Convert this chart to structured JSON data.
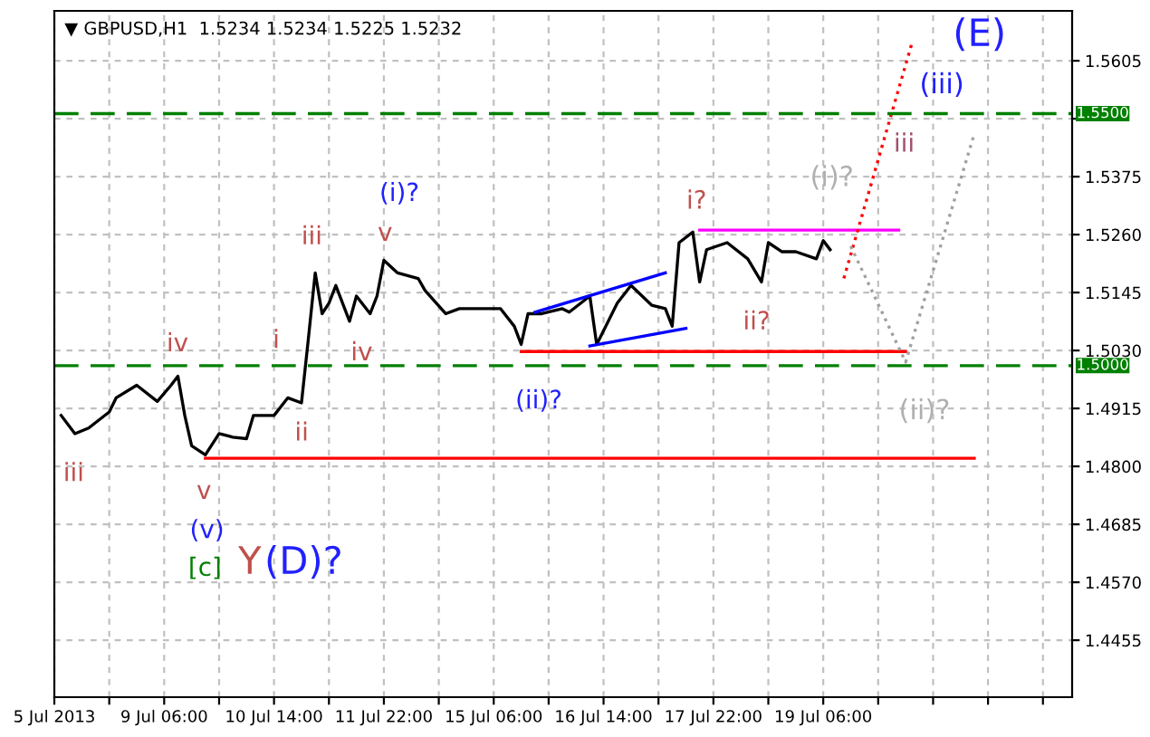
{
  "chart_data": {
    "type": "line",
    "title": "▼ GBPUSD,H1  1.5234 1.5234 1.5225 1.5232",
    "categories": [
      "5 Jul 2013",
      null,
      null,
      null,
      null,
      null,
      null,
      null,
      null,
      null,
      null,
      null,
      null,
      null,
      null,
      null,
      "9 Jul 06:00",
      null,
      null,
      null,
      null,
      null,
      null,
      null,
      null,
      null,
      null,
      null,
      null,
      null,
      null,
      null,
      "10 Jul 14:00",
      null,
      null,
      null,
      null,
      null,
      null,
      null,
      null,
      null,
      null,
      null,
      null,
      null,
      null,
      null,
      "11 Jul 22:00",
      null,
      null,
      null,
      null,
      null,
      null,
      null,
      null,
      null,
      null,
      null,
      null,
      null,
      null,
      null,
      "15 Jul 06:00",
      null,
      null,
      null,
      null,
      null,
      null,
      null,
      null,
      null,
      null,
      null,
      null,
      null,
      null,
      null,
      "16 Jul 14:00",
      null,
      null,
      null,
      null,
      null,
      null,
      null,
      null,
      null,
      null,
      null,
      null,
      null,
      null,
      null,
      "17 Jul 22:00",
      null,
      null,
      null,
      null,
      null,
      null,
      null,
      null,
      null,
      null,
      null,
      null,
      null,
      null,
      null,
      "19 Jul 06:00",
      null,
      null,
      null,
      null,
      null,
      null,
      null,
      null,
      null,
      null,
      null,
      null,
      null,
      null,
      null,
      null,
      null,
      null,
      null,
      null,
      null,
      null,
      null,
      null,
      null,
      null,
      null,
      null,
      null,
      null,
      null,
      null,
      null,
      null,
      null,
      null
    ],
    "ylim": [
      1.4342,
      1.5704
    ],
    "yticks": [
      {
        "value": 1.4455,
        "label": "1.4455"
      },
      {
        "value": 1.457,
        "label": "1.4570"
      },
      {
        "value": 1.4685,
        "label": "1.4685"
      },
      {
        "value": 1.48,
        "label": "1.4800"
      },
      {
        "value": 1.4915,
        "label": "1.4915"
      },
      {
        "value": 1.503,
        "label": "1.5030"
      },
      {
        "value": 1.5145,
        "label": "1.5145"
      },
      {
        "value": 1.526,
        "label": "1.5260"
      },
      {
        "value": 1.5375,
        "label": "1.5375"
      },
      {
        "value": 1.549,
        "label": null
      },
      {
        "value": 1.5605,
        "label": "1.5605"
      }
    ],
    "grid": true,
    "marker": "none",
    "series": [
      {
        "color": "#000000",
        "line_style": "solid",
        "values": [
          null,
          1.4901,
          null,
          1.4865,
          null,
          1.4876,
          null,
          null,
          1.4908,
          1.4936,
          null,
          null,
          1.4961,
          null,
          null,
          1.4929,
          null,
          1.4961,
          1.4979,
          1.4901,
          1.4841,
          null,
          1.4823,
          null,
          1.4865,
          null,
          1.4858,
          null,
          1.4855,
          1.4901,
          null,
          null,
          1.4901,
          null,
          1.4936,
          null,
          1.4926,
          1.5053,
          1.5184,
          1.5103,
          1.5124,
          1.5159,
          null,
          1.5088,
          1.5138,
          null,
          1.5103,
          1.5138,
          1.5209,
          null,
          1.5184,
          null,
          null,
          1.5173,
          1.5149,
          null,
          null,
          1.5103,
          null,
          1.5113,
          null,
          null,
          null,
          1.5113,
          null,
          1.5113,
          null,
          1.5078,
          1.5042,
          1.5103,
          null,
          1.5103,
          null,
          null,
          1.5113,
          1.5106,
          null,
          null,
          1.5138,
          1.5042,
          null,
          null,
          1.5124,
          null,
          1.5159,
          null,
          null,
          1.512,
          null,
          1.5113,
          1.5078,
          1.5244,
          null,
          1.5265,
          1.5166,
          1.523,
          null,
          null,
          1.5244,
          null,
          null,
          1.5212,
          null,
          1.5166,
          1.5244,
          null,
          1.5226,
          null,
          1.5226,
          null,
          null,
          1.5212,
          1.5248,
          1.523,
          null,
          null,
          null,
          null,
          null,
          null,
          null,
          null,
          null,
          null,
          null,
          null,
          null,
          null,
          null,
          null,
          null,
          null,
          null,
          null,
          null,
          null,
          null,
          null,
          null,
          null,
          null,
          null,
          null,
          null,
          null,
          null,
          null,
          null,
          null
        ]
      },
      {
        "color": "#ff0000",
        "line_style": "solid",
        "values": [
          null,
          null,
          null,
          null,
          null,
          null,
          null,
          null,
          null,
          null,
          null,
          null,
          null,
          null,
          null,
          null,
          null,
          null,
          null,
          null,
          null,
          null,
          1.4816,
          null,
          null,
          null,
          null,
          null,
          null,
          null,
          null,
          null,
          null,
          null,
          null,
          null,
          null,
          null,
          null,
          null,
          null,
          null,
          null,
          null,
          null,
          null,
          null,
          null,
          null,
          null,
          null,
          null,
          null,
          null,
          null,
          null,
          null,
          null,
          null,
          null,
          null,
          null,
          null,
          null,
          null,
          null,
          null,
          null,
          null,
          null,
          null,
          null,
          null,
          null,
          null,
          null,
          null,
          null,
          null,
          null,
          null,
          null,
          null,
          null,
          null,
          null,
          null,
          null,
          null,
          null,
          null,
          null,
          null,
          null,
          null,
          null,
          null,
          null,
          null,
          null,
          null,
          null,
          null,
          null,
          null,
          null,
          null,
          null,
          null,
          null,
          null,
          null,
          null,
          null,
          null,
          null,
          null,
          null,
          null,
          null,
          null,
          null,
          null,
          null,
          null,
          null,
          null,
          null,
          null,
          null,
          null,
          null,
          null,
          null,
          1.4816,
          null,
          null,
          null,
          null,
          null,
          null,
          null,
          null,
          null,
          null,
          null,
          null,
          null,
          null
        ]
      },
      {
        "color": "#ff0000",
        "line_style": "solid",
        "values": [
          null,
          null,
          null,
          null,
          null,
          null,
          null,
          null,
          null,
          null,
          null,
          null,
          null,
          null,
          null,
          null,
          null,
          null,
          null,
          null,
          null,
          null,
          null,
          null,
          null,
          null,
          null,
          null,
          null,
          null,
          null,
          null,
          null,
          null,
          null,
          null,
          null,
          null,
          null,
          null,
          null,
          null,
          null,
          null,
          null,
          null,
          null,
          null,
          null,
          null,
          null,
          null,
          null,
          null,
          null,
          null,
          null,
          null,
          null,
          null,
          null,
          null,
          null,
          null,
          null,
          null,
          null,
          null,
          1.5028,
          null,
          null,
          null,
          null,
          null,
          null,
          null,
          null,
          null,
          null,
          null,
          null,
          null,
          null,
          null,
          null,
          null,
          null,
          null,
          null,
          null,
          null,
          null,
          null,
          null,
          null,
          null,
          null,
          null,
          null,
          null,
          null,
          null,
          null,
          null,
          null,
          null,
          null,
          null,
          null,
          null,
          null,
          null,
          null,
          null,
          null,
          null,
          null,
          null,
          null,
          null,
          null,
          null,
          null,
          null,
          1.5028,
          null,
          null,
          null,
          null,
          null,
          null,
          null,
          null,
          null,
          null,
          null,
          null,
          null,
          null,
          null,
          null,
          null,
          null,
          null,
          null,
          null,
          null,
          null,
          null
        ]
      },
      {
        "color": "#ff00ff",
        "line_style": "solid",
        "values": [
          null,
          null,
          null,
          null,
          null,
          null,
          null,
          null,
          null,
          null,
          null,
          null,
          null,
          null,
          null,
          null,
          null,
          null,
          null,
          null,
          null,
          null,
          null,
          null,
          null,
          null,
          null,
          null,
          null,
          null,
          null,
          null,
          null,
          null,
          null,
          null,
          null,
          null,
          null,
          null,
          null,
          null,
          null,
          null,
          null,
          null,
          null,
          null,
          null,
          null,
          null,
          null,
          null,
          null,
          null,
          null,
          null,
          null,
          null,
          null,
          null,
          null,
          null,
          null,
          null,
          null,
          null,
          null,
          null,
          null,
          null,
          null,
          null,
          null,
          null,
          null,
          null,
          null,
          null,
          null,
          null,
          null,
          null,
          null,
          null,
          null,
          null,
          null,
          null,
          null,
          null,
          null,
          null,
          null,
          1.5269,
          null,
          null,
          null,
          null,
          null,
          null,
          null,
          null,
          null,
          null,
          null,
          null,
          null,
          null,
          null,
          null,
          null,
          null,
          null,
          null,
          null,
          null,
          null,
          null,
          null,
          null,
          null,
          null,
          1.5269,
          null,
          null,
          null,
          null,
          null,
          null,
          null,
          null,
          null,
          null,
          null,
          null,
          null,
          null,
          null,
          null,
          null,
          null,
          null,
          null,
          null,
          null,
          null,
          null,
          null
        ]
      },
      {
        "color": "#0000ff",
        "line_style": "solid",
        "values": [
          null,
          null,
          null,
          null,
          null,
          null,
          null,
          null,
          null,
          null,
          null,
          null,
          null,
          null,
          null,
          null,
          null,
          null,
          null,
          null,
          null,
          null,
          null,
          null,
          null,
          null,
          null,
          null,
          null,
          null,
          null,
          null,
          null,
          null,
          null,
          null,
          null,
          null,
          null,
          null,
          null,
          null,
          null,
          null,
          null,
          null,
          null,
          null,
          null,
          null,
          null,
          null,
          null,
          null,
          null,
          null,
          null,
          null,
          null,
          null,
          null,
          null,
          null,
          null,
          null,
          null,
          null,
          null,
          null,
          null,
          1.5106,
          null,
          null,
          null,
          null,
          null,
          null,
          null,
          null,
          null,
          null,
          null,
          null,
          null,
          null,
          null,
          null,
          null,
          null,
          1.5184,
          null,
          null,
          null,
          null,
          null,
          null,
          null,
          null,
          null,
          null,
          null,
          null,
          null,
          null,
          null,
          null,
          null,
          null,
          null,
          null,
          null,
          null,
          null,
          null,
          null,
          null,
          null,
          null,
          null,
          null,
          null,
          null,
          null,
          null,
          null,
          null,
          null,
          null,
          null,
          null,
          null,
          null,
          null,
          null,
          null,
          null,
          null,
          null,
          null,
          null,
          null,
          null,
          null,
          null,
          null,
          null,
          null,
          null,
          null
        ]
      },
      {
        "color": "#0000ff",
        "line_style": "solid",
        "values": [
          null,
          null,
          null,
          null,
          null,
          null,
          null,
          null,
          null,
          null,
          null,
          null,
          null,
          null,
          null,
          null,
          null,
          null,
          null,
          null,
          null,
          null,
          null,
          null,
          null,
          null,
          null,
          null,
          null,
          null,
          null,
          null,
          null,
          null,
          null,
          null,
          null,
          null,
          null,
          null,
          null,
          null,
          null,
          null,
          null,
          null,
          null,
          null,
          null,
          null,
          null,
          null,
          null,
          null,
          null,
          null,
          null,
          null,
          null,
          null,
          null,
          null,
          null,
          null,
          null,
          null,
          null,
          null,
          null,
          null,
          null,
          null,
          null,
          null,
          null,
          null,
          null,
          null,
          1.5039,
          null,
          null,
          null,
          null,
          null,
          null,
          null,
          null,
          null,
          null,
          null,
          null,
          null,
          1.5074,
          null,
          null,
          null,
          null,
          null,
          null,
          null,
          null,
          null,
          null,
          null,
          null,
          null,
          null,
          null,
          null,
          null,
          null,
          null,
          null,
          null,
          null,
          null,
          null,
          null,
          null,
          null,
          null,
          null,
          null,
          null,
          null,
          null,
          null,
          null,
          null,
          null,
          null,
          null,
          null,
          null,
          null,
          null,
          null,
          null,
          null,
          null,
          null,
          null,
          null,
          null,
          null,
          null,
          null,
          null,
          null
        ]
      },
      {
        "color": "#ff0000",
        "line_style": "dotted",
        "values": [
          null,
          null,
          null,
          null,
          null,
          null,
          null,
          null,
          null,
          null,
          null,
          null,
          null,
          null,
          null,
          null,
          null,
          null,
          null,
          null,
          null,
          null,
          null,
          null,
          null,
          null,
          null,
          null,
          null,
          null,
          null,
          null,
          null,
          null,
          null,
          null,
          null,
          null,
          null,
          null,
          null,
          null,
          null,
          null,
          null,
          null,
          null,
          null,
          null,
          null,
          null,
          null,
          null,
          null,
          null,
          null,
          null,
          null,
          null,
          null,
          null,
          null,
          null,
          null,
          null,
          null,
          null,
          null,
          null,
          null,
          null,
          null,
          null,
          null,
          null,
          null,
          null,
          null,
          null,
          null,
          null,
          null,
          null,
          null,
          null,
          null,
          null,
          null,
          null,
          null,
          null,
          null,
          null,
          null,
          null,
          null,
          null,
          null,
          null,
          null,
          null,
          null,
          null,
          null,
          null,
          null,
          null,
          null,
          null,
          null,
          null,
          null,
          null,
          null,
          null,
          1.5173,
          null,
          null,
          null,
          null,
          null,
          null,
          null,
          null,
          null,
          1.5644,
          null,
          null,
          null,
          null,
          null,
          null,
          null,
          null,
          null,
          null,
          null,
          null,
          null,
          null,
          null,
          null,
          null,
          null,
          null,
          null,
          null,
          null,
          null
        ]
      },
      {
        "color": "#a0a0a0",
        "line_style": "dotted",
        "values": [
          null,
          null,
          null,
          null,
          null,
          null,
          null,
          null,
          null,
          null,
          null,
          null,
          null,
          null,
          null,
          null,
          null,
          null,
          null,
          null,
          null,
          null,
          null,
          null,
          null,
          null,
          null,
          null,
          null,
          null,
          null,
          null,
          null,
          null,
          null,
          null,
          null,
          null,
          null,
          null,
          null,
          null,
          null,
          null,
          null,
          null,
          null,
          null,
          null,
          null,
          null,
          null,
          null,
          null,
          null,
          null,
          null,
          null,
          null,
          null,
          null,
          null,
          null,
          null,
          null,
          null,
          null,
          null,
          null,
          null,
          null,
          null,
          null,
          null,
          null,
          null,
          null,
          null,
          null,
          null,
          null,
          null,
          null,
          null,
          null,
          null,
          null,
          null,
          null,
          null,
          null,
          null,
          null,
          null,
          null,
          null,
          null,
          null,
          null,
          null,
          null,
          null,
          null,
          null,
          null,
          null,
          null,
          null,
          null,
          null,
          null,
          null,
          null,
          null,
          null,
          null,
          1.5237,
          null,
          null,
          null,
          null,
          null,
          null,
          null,
          1.5007,
          null,
          null,
          null,
          null,
          null,
          null,
          null,
          null,
          null,
          1.546,
          null,
          null,
          null,
          null,
          null,
          null,
          null,
          null,
          null,
          null,
          null,
          null,
          null,
          null
        ]
      }
    ],
    "ref_lines": [
      {
        "axis": "y",
        "value": 1.55,
        "label": "1.5500",
        "color": "#008000",
        "line_style": "dashed"
      },
      {
        "axis": "y",
        "value": 1.5,
        "label": "1.5000",
        "color": "#008000",
        "line_style": "dashed"
      }
    ],
    "annotations": [
      "iii",
      "iv",
      "i",
      "ii",
      "iii",
      "iv",
      "v",
      "(i)?",
      "v",
      "(v)",
      "[c]",
      "Y",
      "(D)?",
      "(ii)?",
      "i?",
      "ii?",
      "(i)?",
      "iii",
      "(iii)",
      "(E)",
      "(ii)?"
    ]
  }
}
